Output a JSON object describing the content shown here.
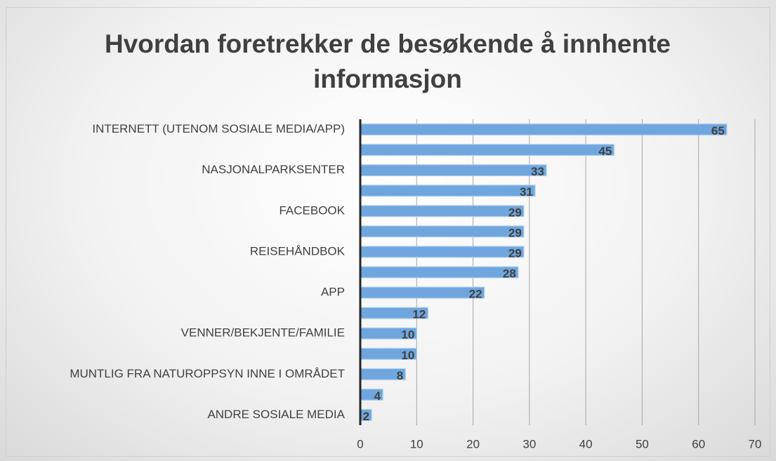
{
  "chart_data": {
    "type": "bar",
    "orientation": "horizontal",
    "title": "Hvordan foretrekker de besøkende å innhente informasjon",
    "categories": [
      "INTERNETT (UTENOM SOSIALE MEDIA/APP)",
      null,
      "NASJONALPARKSENTER",
      null,
      "FACEBOOK",
      null,
      "REISEHÅNDBOK",
      null,
      "APP",
      null,
      "VENNER/BEKJENTE/FAMILIE",
      null,
      "MUNTLIG FRA NATUROPPSYN INNE I OMRÅDET",
      null,
      "ANDRE SOSIALE MEDIA"
    ],
    "values": [
      65,
      45,
      33,
      31,
      29,
      29,
      29,
      28,
      22,
      12,
      10,
      10,
      8,
      4,
      2
    ],
    "color": "#6fa6dd",
    "xlim": [
      0,
      70
    ],
    "xticks": [
      0,
      10,
      20,
      30,
      40,
      50,
      60,
      70
    ],
    "grid": true
  }
}
